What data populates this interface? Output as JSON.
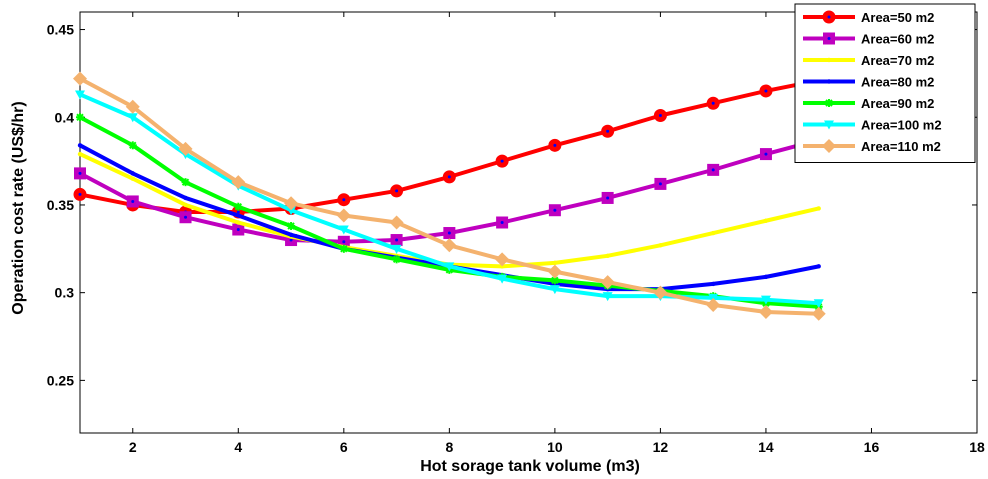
{
  "chart_data": {
    "type": "line",
    "xlabel": "Hot sorage tank volume (m3)",
    "ylabel": "Operation cost rate (US$/hr)",
    "xlim": [
      1,
      18
    ],
    "ylim": [
      0.22,
      0.46
    ],
    "xticks": [
      2,
      4,
      6,
      8,
      10,
      12,
      14,
      16,
      18
    ],
    "yticks": [
      0.25,
      0.3,
      0.35,
      0.4,
      0.45
    ],
    "xtick_labels": [
      "2",
      "4",
      "6",
      "8",
      "10",
      "12",
      "14",
      "16",
      "18"
    ],
    "ytick_labels": [
      "0.25",
      "0.3",
      "0.35",
      "0.4",
      "0.45"
    ],
    "grid": false,
    "legend_position": "top-right",
    "x": [
      1,
      2,
      3,
      4,
      5,
      6,
      7,
      8,
      9,
      10,
      11,
      12,
      13,
      14,
      15
    ],
    "series": [
      {
        "name": "Area=50 m2",
        "color": "#ff0000",
        "marker": "circle",
        "values": [
          0.356,
          0.35,
          0.346,
          0.346,
          0.348,
          0.353,
          0.358,
          0.366,
          0.375,
          0.384,
          0.392,
          0.401,
          0.408,
          0.415,
          0.421
        ]
      },
      {
        "name": "Area=60 m2",
        "color": "#bf00bf",
        "marker": "square",
        "values": [
          0.368,
          0.352,
          0.343,
          0.336,
          0.33,
          0.329,
          0.33,
          0.334,
          0.34,
          0.347,
          0.354,
          0.362,
          0.37,
          0.379,
          0.387
        ]
      },
      {
        "name": "Area=70 m2",
        "color": "#ffff00",
        "marker": "dot",
        "values": [
          0.379,
          0.365,
          0.35,
          0.34,
          0.332,
          0.326,
          0.321,
          0.316,
          0.315,
          0.317,
          0.321,
          0.327,
          0.334,
          0.341,
          0.348
        ]
      },
      {
        "name": "Area=80 m2",
        "color": "#0000ff",
        "marker": "dot",
        "values": [
          0.384,
          0.368,
          0.354,
          0.344,
          0.333,
          0.325,
          0.32,
          0.315,
          0.31,
          0.305,
          0.302,
          0.302,
          0.305,
          0.309,
          0.315
        ]
      },
      {
        "name": "Area=90 m2",
        "color": "#00ff00",
        "marker": "asterisk",
        "values": [
          0.4,
          0.384,
          0.363,
          0.349,
          0.338,
          0.325,
          0.319,
          0.313,
          0.309,
          0.307,
          0.304,
          0.301,
          0.298,
          0.294,
          0.292
        ]
      },
      {
        "name": "Area=100 m2",
        "color": "#00ffff",
        "marker": "triangle",
        "values": [
          0.413,
          0.4,
          0.379,
          0.361,
          0.347,
          0.336,
          0.325,
          0.315,
          0.308,
          0.302,
          0.298,
          0.298,
          0.297,
          0.296,
          0.294
        ]
      },
      {
        "name": "Area=110 m2",
        "color": "#f4b26e",
        "marker": "diamond",
        "values": [
          0.422,
          0.406,
          0.382,
          0.363,
          0.351,
          0.344,
          0.34,
          0.327,
          0.319,
          0.312,
          0.306,
          0.3,
          0.293,
          0.289,
          0.288
        ]
      }
    ]
  }
}
